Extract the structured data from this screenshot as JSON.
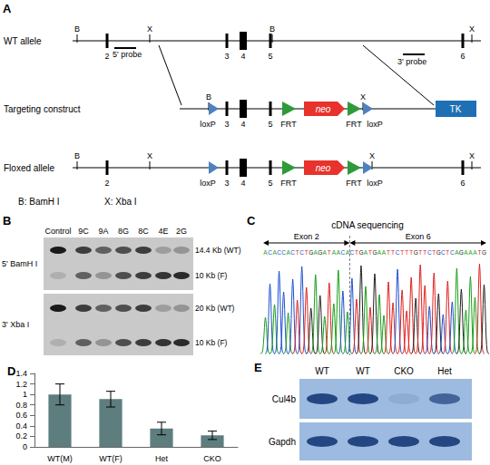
{
  "panels": {
    "A": {
      "label": "A",
      "rows": [
        {
          "name": "WT allele",
          "sites": [
            "B",
            "X",
            "B",
            "X"
          ],
          "exons": [
            "2",
            "3",
            "4",
            "5",
            "6"
          ]
        },
        {
          "name": "Targeting construct",
          "sites": [
            "B",
            "X"
          ],
          "exons": [
            "3",
            "4",
            "5"
          ],
          "loxp": [
            "loxP",
            "loxP"
          ],
          "frt": [
            "FRT",
            "FRT"
          ],
          "neo": "neo",
          "tk": "TK"
        },
        {
          "name": "Floxed allele",
          "sites": [
            "B",
            "X",
            "X",
            "X"
          ],
          "exons": [
            "2",
            "3",
            "4",
            "5",
            "6"
          ],
          "loxp": [
            "loxP",
            "loxP"
          ],
          "frt": [
            "FRT",
            "FRT"
          ],
          "neo": "neo"
        }
      ],
      "probes": [
        "5' probe",
        "3' probe"
      ],
      "key": [
        "B: BamH I",
        "X: Xba I"
      ]
    },
    "B": {
      "label": "B",
      "lanes": [
        "Control",
        "9C",
        "9A",
        "8G",
        "8C",
        "4E",
        "2G"
      ],
      "blots": [
        {
          "name": "5' BamH I",
          "bands": [
            "14.4 Kb (WT)",
            "10 Kb (F)"
          ]
        },
        {
          "name": "3' Xba I",
          "bands": [
            "20 Kb (WT)",
            "10 Kb (F)"
          ]
        }
      ]
    },
    "C": {
      "label": "C",
      "title": "cDNA sequencing",
      "exons": [
        "Exon 2",
        "Exon 6"
      ],
      "exon2_sequence": "ACACCACTCTGAGATAACA",
      "exon6_sequence": "CTGATGAATTCTTTGTTCTGCTCAGAAATG",
      "base_colors": {
        "A": "#1a9e1a",
        "C": "#1f4fd0",
        "G": "#222222",
        "T": "#e0201c"
      }
    },
    "E": {
      "label": "E",
      "lanes": [
        "WT",
        "WT",
        "CKO",
        "Het"
      ],
      "proteins": [
        "Cul4b",
        "Gapdh"
      ]
    }
  },
  "chart_data": {
    "type": "bar",
    "title": "D",
    "categories": [
      "WT(M)",
      "WT(F)",
      "Het",
      "CKO"
    ],
    "values": [
      1.0,
      0.91,
      0.35,
      0.22
    ],
    "errors": [
      0.2,
      0.15,
      0.12,
      0.08
    ],
    "color": "#5e7d7e",
    "ylim": [
      0,
      1.4
    ],
    "yticks": [
      0,
      0.2,
      0.4,
      0.6,
      0.8,
      1,
      1.2,
      1.4
    ],
    "grid": false
  }
}
